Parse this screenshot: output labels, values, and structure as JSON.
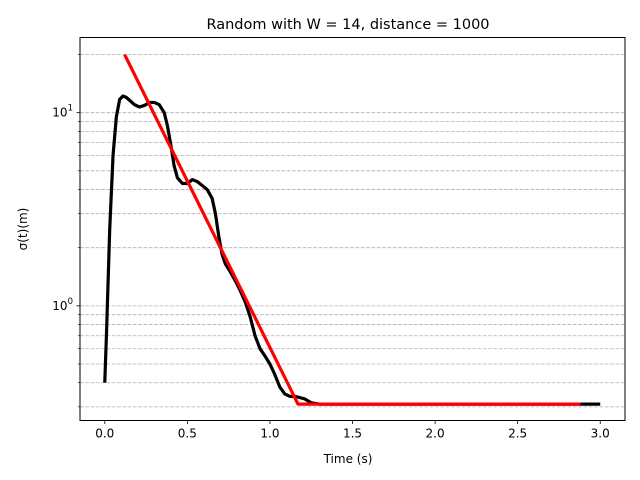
{
  "chart_data": {
    "type": "line",
    "title": "Random with W = 14, distance = 1000",
    "xlabel": "Time (s)",
    "ylabel": "σ(t)(m)",
    "xlim": [
      -0.15,
      3.15
    ],
    "ylim": [
      0.255,
      24.5
    ],
    "yscale": "log",
    "grid": "y-major-and-minor-dashed",
    "x_ticks": [
      0.0,
      0.5,
      1.0,
      1.5,
      2.0,
      2.5,
      3.0
    ],
    "x_tick_labels": [
      "0.0",
      "0.5",
      "1.0",
      "1.5",
      "2.0",
      "2.5",
      "3.0"
    ],
    "y_major_ticks": [
      1,
      10
    ],
    "y_major_tick_labels": [
      "10^0",
      "10^1"
    ],
    "y_minor_ticks": [
      0.3,
      0.4,
      0.5,
      0.6,
      0.7,
      0.8,
      0.9,
      2,
      3,
      4,
      5,
      6,
      7,
      8,
      9,
      20
    ],
    "series": [
      {
        "color": "#000000",
        "x": [
          0.0,
          0.01,
          0.03,
          0.05,
          0.07,
          0.09,
          0.11,
          0.13,
          0.15,
          0.18,
          0.21,
          0.24,
          0.27,
          0.3,
          0.33,
          0.36,
          0.38,
          0.4,
          0.42,
          0.44,
          0.47,
          0.5,
          0.53,
          0.56,
          0.59,
          0.62,
          0.65,
          0.67,
          0.69,
          0.71,
          0.73,
          0.76,
          0.79,
          0.82,
          0.85,
          0.88,
          0.91,
          0.94,
          0.97,
          1.0,
          1.03,
          1.06,
          1.09,
          1.12,
          1.15,
          1.18,
          1.21,
          1.25,
          1.3,
          1.5,
          2.0,
          2.5,
          3.0
        ],
        "y": [
          0.4,
          0.7,
          2.5,
          6.0,
          9.5,
          11.7,
          12.2,
          12.0,
          11.6,
          11.0,
          10.7,
          10.9,
          11.3,
          11.3,
          11.0,
          10.0,
          8.5,
          6.8,
          5.3,
          4.6,
          4.3,
          4.3,
          4.5,
          4.4,
          4.2,
          4.0,
          3.6,
          3.0,
          2.3,
          1.85,
          1.65,
          1.5,
          1.35,
          1.2,
          1.05,
          0.88,
          0.7,
          0.6,
          0.55,
          0.5,
          0.44,
          0.38,
          0.35,
          0.34,
          0.34,
          0.335,
          0.33,
          0.315,
          0.31,
          0.31,
          0.31,
          0.31,
          0.31
        ]
      },
      {
        "color": "#ff0000",
        "x": [
          0.12,
          1.17,
          2.88
        ],
        "y": [
          20.0,
          0.31,
          0.31
        ]
      }
    ]
  }
}
